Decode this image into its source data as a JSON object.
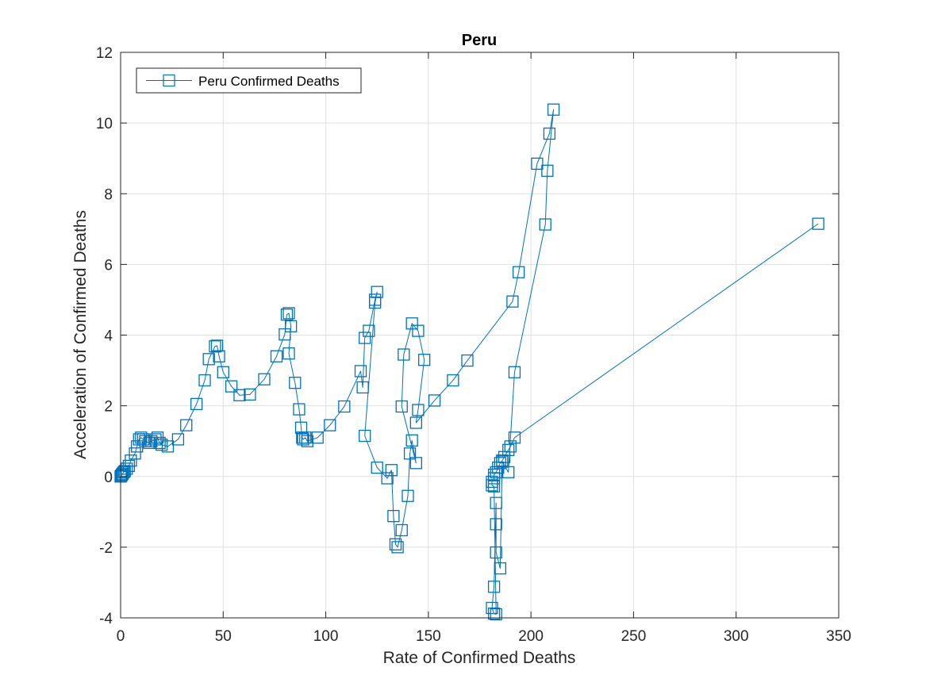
{
  "chart_data": {
    "type": "line",
    "title": "Peru",
    "xlabel": "Rate of Confirmed Deaths",
    "ylabel": "Acceleration of Confirmed Deaths",
    "xlim": [
      0,
      350
    ],
    "ylim": [
      -4,
      12
    ],
    "xticks": [
      0,
      50,
      100,
      150,
      200,
      250,
      300,
      350
    ],
    "yticks": [
      -4,
      -2,
      0,
      2,
      4,
      6,
      8,
      10,
      12
    ],
    "xtick_labels": [
      "0",
      "50",
      "100",
      "150",
      "200",
      "250",
      "300",
      "350"
    ],
    "ytick_labels": [
      "-4",
      "-2",
      "0",
      "2",
      "4",
      "6",
      "8",
      "10",
      "12"
    ],
    "grid": true,
    "legend_position": "top-left",
    "marker": "square",
    "series": [
      {
        "name": "Peru Confirmed Deaths",
        "color": "#0072BD",
        "points": [
          [
            0,
            0
          ],
          [
            0.3,
            0.02
          ],
          [
            0.6,
            0.05
          ],
          [
            1,
            0.08
          ],
          [
            1.5,
            0.12
          ],
          [
            2,
            0.15
          ],
          [
            3,
            0.22
          ],
          [
            4,
            0.3
          ],
          [
            5,
            0.45
          ],
          [
            7,
            0.65
          ],
          [
            8,
            0.85
          ],
          [
            9,
            1.05
          ],
          [
            10,
            1.1
          ],
          [
            11,
            1.05
          ],
          [
            12,
            1.0
          ],
          [
            14,
            0.95
          ],
          [
            15,
            1.0
          ],
          [
            17,
            1.05
          ],
          [
            18,
            1.1
          ],
          [
            19,
            0.95
          ],
          [
            20,
            0.9
          ],
          [
            23,
            0.85
          ],
          [
            28,
            1.05
          ],
          [
            32,
            1.45
          ],
          [
            37,
            2.05
          ],
          [
            41,
            2.72
          ],
          [
            43,
            3.32
          ],
          [
            46,
            3.68
          ],
          [
            47,
            3.7
          ],
          [
            48,
            3.4
          ],
          [
            50,
            2.95
          ],
          [
            54,
            2.55
          ],
          [
            58,
            2.3
          ],
          [
            63,
            2.32
          ],
          [
            70,
            2.75
          ],
          [
            76,
            3.4
          ],
          [
            80,
            4.02
          ],
          [
            81,
            4.58
          ],
          [
            82,
            4.62
          ],
          [
            83,
            4.25
          ],
          [
            82,
            3.48
          ],
          [
            85,
            2.65
          ],
          [
            87,
            1.9
          ],
          [
            88,
            1.38
          ],
          [
            88.5,
            1.1
          ],
          [
            89,
            1.05
          ],
          [
            90,
            1.1
          ],
          [
            91,
            1.0
          ],
          [
            96,
            1.1
          ],
          [
            102,
            1.45
          ],
          [
            109,
            1.98
          ],
          [
            117,
            2.98
          ],
          [
            118,
            2.52
          ],
          [
            119,
            3.92
          ],
          [
            121,
            4.12
          ],
          [
            124,
            5.0
          ],
          [
            125,
            5.22
          ],
          [
            124,
            4.92
          ],
          [
            119,
            1.15
          ],
          [
            125,
            0.25
          ],
          [
            130,
            -0.05
          ],
          [
            132,
            0.18
          ],
          [
            133,
            -1.12
          ],
          [
            134,
            -1.92
          ],
          [
            135,
            -2.0
          ],
          [
            137,
            -1.52
          ],
          [
            140,
            -0.55
          ],
          [
            141,
            0.65
          ],
          [
            142,
            1.02
          ],
          [
            144,
            0.38
          ],
          [
            137,
            1.98
          ],
          [
            138,
            3.45
          ],
          [
            142,
            4.33
          ],
          [
            145,
            4.12
          ],
          [
            148,
            3.3
          ],
          [
            145,
            1.88
          ],
          [
            144,
            1.52
          ],
          [
            153,
            2.15
          ],
          [
            162,
            2.72
          ],
          [
            169,
            3.28
          ],
          [
            191,
            4.95
          ],
          [
            194,
            5.78
          ],
          [
            203,
            8.85
          ],
          [
            209,
            9.7
          ],
          [
            211,
            10.38
          ],
          [
            208,
            8.65
          ],
          [
            207,
            7.13
          ],
          [
            192,
            2.95
          ],
          [
            189,
            0.12
          ],
          [
            186,
            0.42
          ],
          [
            185,
            -2.6
          ],
          [
            183,
            -2.15
          ],
          [
            183,
            -1.35
          ],
          [
            183,
            -0.75
          ],
          [
            182,
            -3.12
          ],
          [
            181,
            -3.72
          ],
          [
            182,
            -3.88
          ],
          [
            183,
            -3.9
          ],
          [
            182,
            -0.28
          ],
          [
            181,
            -0.25
          ],
          [
            181,
            -0.15
          ],
          [
            182,
            -0.05
          ],
          [
            182,
            0.05
          ],
          [
            183,
            0.12
          ],
          [
            184,
            0.25
          ],
          [
            185,
            0.38
          ],
          [
            186,
            0.45
          ],
          [
            187,
            0.55
          ],
          [
            189,
            0.75
          ],
          [
            190,
            0.85
          ],
          [
            192,
            1.1
          ],
          [
            340,
            7.15
          ]
        ]
      }
    ]
  }
}
